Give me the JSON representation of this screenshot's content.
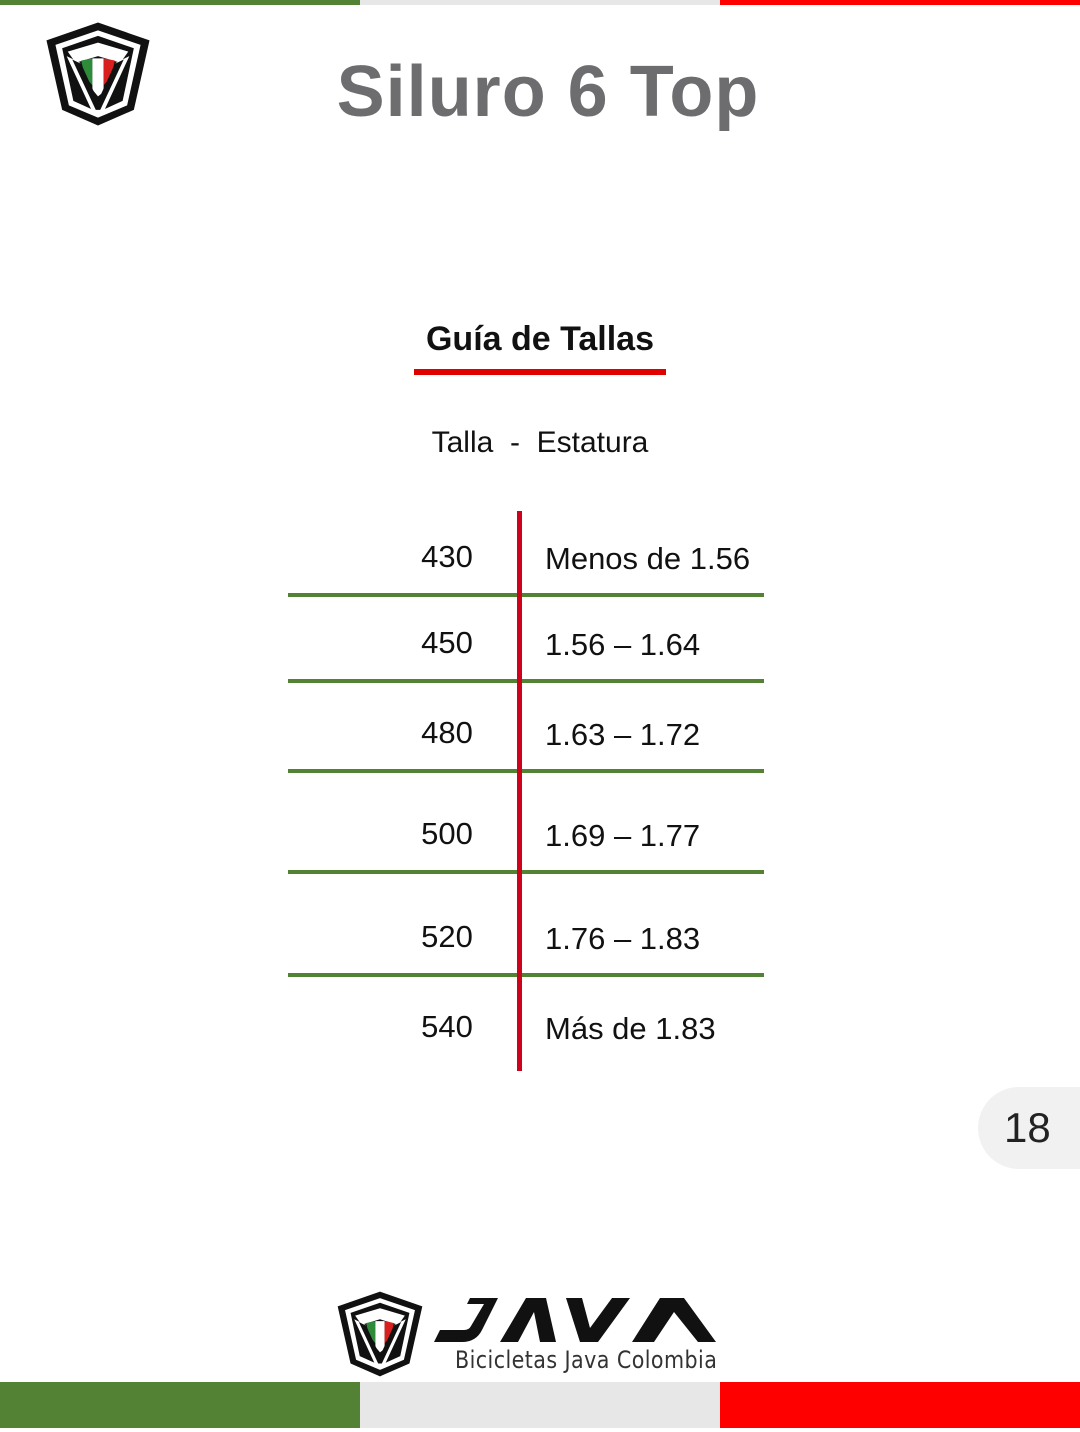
{
  "document": {
    "title": "Siluro 6 Top",
    "page_number": "18"
  },
  "size_guide": {
    "heading": "Guía de Tallas",
    "column_caption": "Talla  -  Estatura",
    "rows": [
      {
        "size": "430",
        "height": "Menos de 1.56"
      },
      {
        "size": "450",
        "height": "1.56 – 1.64"
      },
      {
        "size": "480",
        "height": "1.63 – 1.72"
      },
      {
        "size": "500",
        "height": "1.69 – 1.77"
      },
      {
        "size": "520",
        "height": "1.76 – 1.83"
      },
      {
        "size": "540",
        "height": "Más de 1.83"
      }
    ]
  },
  "brand": {
    "wordmark": "JAVA",
    "tagline": "Bicicletas Java Colombia",
    "logo_icon": "v-shield-logo-icon"
  },
  "colors": {
    "flag_green": "#548235",
    "flag_white": "#e7e7e7",
    "flag_red": "#ff0000",
    "title_gray": "#6d6d6f",
    "divider_red": "#d0021b"
  }
}
